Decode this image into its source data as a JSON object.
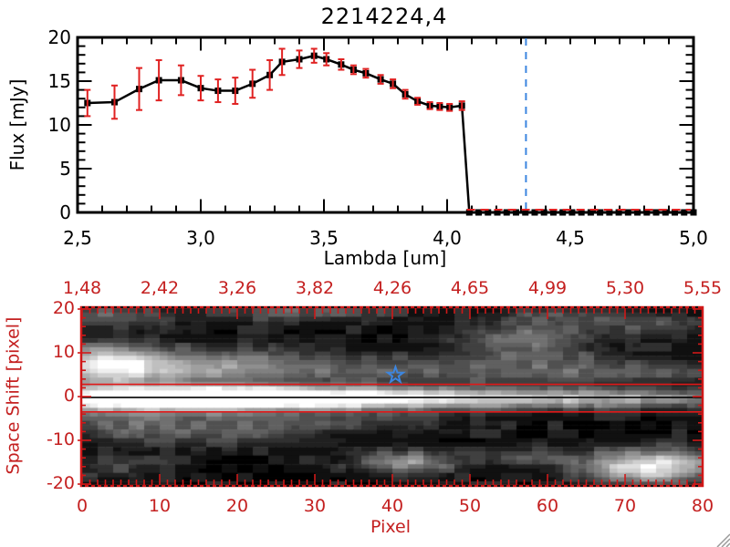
{
  "window": {
    "background": "#ffffff",
    "has_resize_grip": true,
    "grip_color": "#9a9a9a"
  },
  "chart_data": [
    {
      "type": "line",
      "title": "2214224,4",
      "xlabel": "Lambda [um]",
      "ylabel": "Flux [mJy]",
      "xlim": [
        2.5,
        5.0
      ],
      "ylim": [
        0,
        20
      ],
      "x_tick_labels": [
        "2,5",
        "3,0",
        "3,5",
        "4,0",
        "4,5",
        "5,0"
      ],
      "x_tick_values": [
        2.5,
        3.0,
        3.5,
        4.0,
        4.5,
        5.0
      ],
      "y_tick_labels": [
        "0",
        "5",
        "10",
        "15",
        "20"
      ],
      "y_tick_values": [
        0,
        5,
        10,
        15,
        20
      ],
      "x_minor_step": 0.1,
      "y_minor_step": 1,
      "marker": "filled-square",
      "line_color": "#000000",
      "errorbar_color": "#e02222",
      "x": [
        2.54,
        2.65,
        2.75,
        2.83,
        2.92,
        3.0,
        3.07,
        3.14,
        3.21,
        3.28,
        3.33,
        3.4,
        3.46,
        3.51,
        3.57,
        3.62,
        3.67,
        3.73,
        3.78,
        3.83,
        3.88,
        3.93,
        3.97,
        4.01,
        4.06
      ],
      "y": [
        12.5,
        12.6,
        14.1,
        15.1,
        15.1,
        14.2,
        13.9,
        13.9,
        14.7,
        15.7,
        17.2,
        17.5,
        17.9,
        17.5,
        16.9,
        16.3,
        15.9,
        15.2,
        14.7,
        13.5,
        12.7,
        12.2,
        12.1,
        12.0,
        12.2
      ],
      "yerr": [
        1.5,
        1.9,
        2.4,
        2.3,
        1.7,
        1.4,
        1.3,
        1.5,
        1.6,
        1.7,
        1.5,
        1.0,
        0.8,
        0.7,
        0.6,
        0.5,
        0.5,
        0.5,
        0.5,
        0.5,
        0.4,
        0.4,
        0.4,
        0.4,
        0.5
      ],
      "zero_tail": {
        "start": 4.09,
        "end": 5.0,
        "count": 25,
        "value": 0
      },
      "zero_dash_line": {
        "y": 0,
        "color": "#e02222",
        "style": "dashed"
      },
      "vline": {
        "x": 4.32,
        "color": "#3c86e0",
        "style": "dashed"
      }
    },
    {
      "type": "heatmap",
      "xlabel": "Pixel",
      "ylabel": "Space Shift [pixel]",
      "xlim": [
        0,
        80
      ],
      "ylim": [
        -20.4,
        20.4
      ],
      "bottom_tick_labels": [
        "0",
        "10",
        "20",
        "30",
        "40",
        "50",
        "60",
        "70",
        "80"
      ],
      "bottom_tick_values": [
        0,
        10,
        20,
        30,
        40,
        50,
        60,
        70,
        80
      ],
      "top_tick_labels": [
        "1,48",
        "2,42",
        "3,26",
        "3,82",
        "4,26",
        "4,65",
        "4,99",
        "5,30",
        "5,55"
      ],
      "left_tick_labels": [
        "20",
        "10",
        "0",
        "-10",
        "-20"
      ],
      "left_tick_values": [
        20,
        10,
        0,
        -10,
        -20
      ],
      "axis_color": "#d01818",
      "label_color": "#c42020",
      "colormap": "grayscale",
      "grid_cols": 80,
      "grid_rows": 41,
      "aperture_lines": {
        "shifts": [
          2.8,
          -3.5
        ],
        "color": "#e01818"
      },
      "trace_line": {
        "shift": -0.2,
        "color": "#000000"
      },
      "star_marker": {
        "pixel": 40.4,
        "shift": 4.9,
        "color": "#3c86e0"
      },
      "noise_seed": 7,
      "intensity_features": [
        [
          3,
          7.5,
          5,
          3.2,
          0.8
        ],
        [
          16,
          7,
          9,
          2.8,
          0.4
        ],
        [
          38,
          6.5,
          22,
          2.2,
          0.26
        ],
        [
          68,
          5.5,
          14,
          1.8,
          0.2
        ],
        [
          14,
          -0.3,
          9,
          1.9,
          1.15
        ],
        [
          30,
          -0.3,
          14,
          1.8,
          0.8
        ],
        [
          52,
          -0.3,
          18,
          1.7,
          0.5
        ],
        [
          72,
          -0.3,
          12,
          1.5,
          0.28
        ],
        [
          0,
          -0.5,
          5,
          2.2,
          0.55
        ],
        [
          8,
          -6.5,
          7,
          3,
          0.3
        ],
        [
          22,
          -8,
          6,
          2.2,
          0.2
        ],
        [
          33,
          -5.5,
          10,
          1.8,
          0.2
        ],
        [
          42,
          -15,
          4.5,
          1.8,
          0.5
        ],
        [
          56,
          -13.5,
          4,
          1.5,
          0.22
        ],
        [
          73,
          -16,
          6,
          2.6,
          0.9
        ],
        [
          4,
          -16,
          5,
          2,
          0.16
        ],
        [
          4,
          18.5,
          5,
          1.8,
          0.3
        ],
        [
          28,
          19.5,
          9,
          1.5,
          0.26
        ],
        [
          55,
          13,
          5,
          1.8,
          0.28
        ],
        [
          60,
          14.5,
          5,
          2.2,
          0.24
        ],
        [
          62,
          18.5,
          7,
          1.5,
          0.2
        ],
        [
          74,
          16.5,
          5,
          1.8,
          0.22
        ],
        [
          58,
          9.5,
          8,
          1.5,
          0.16
        ]
      ]
    }
  ]
}
